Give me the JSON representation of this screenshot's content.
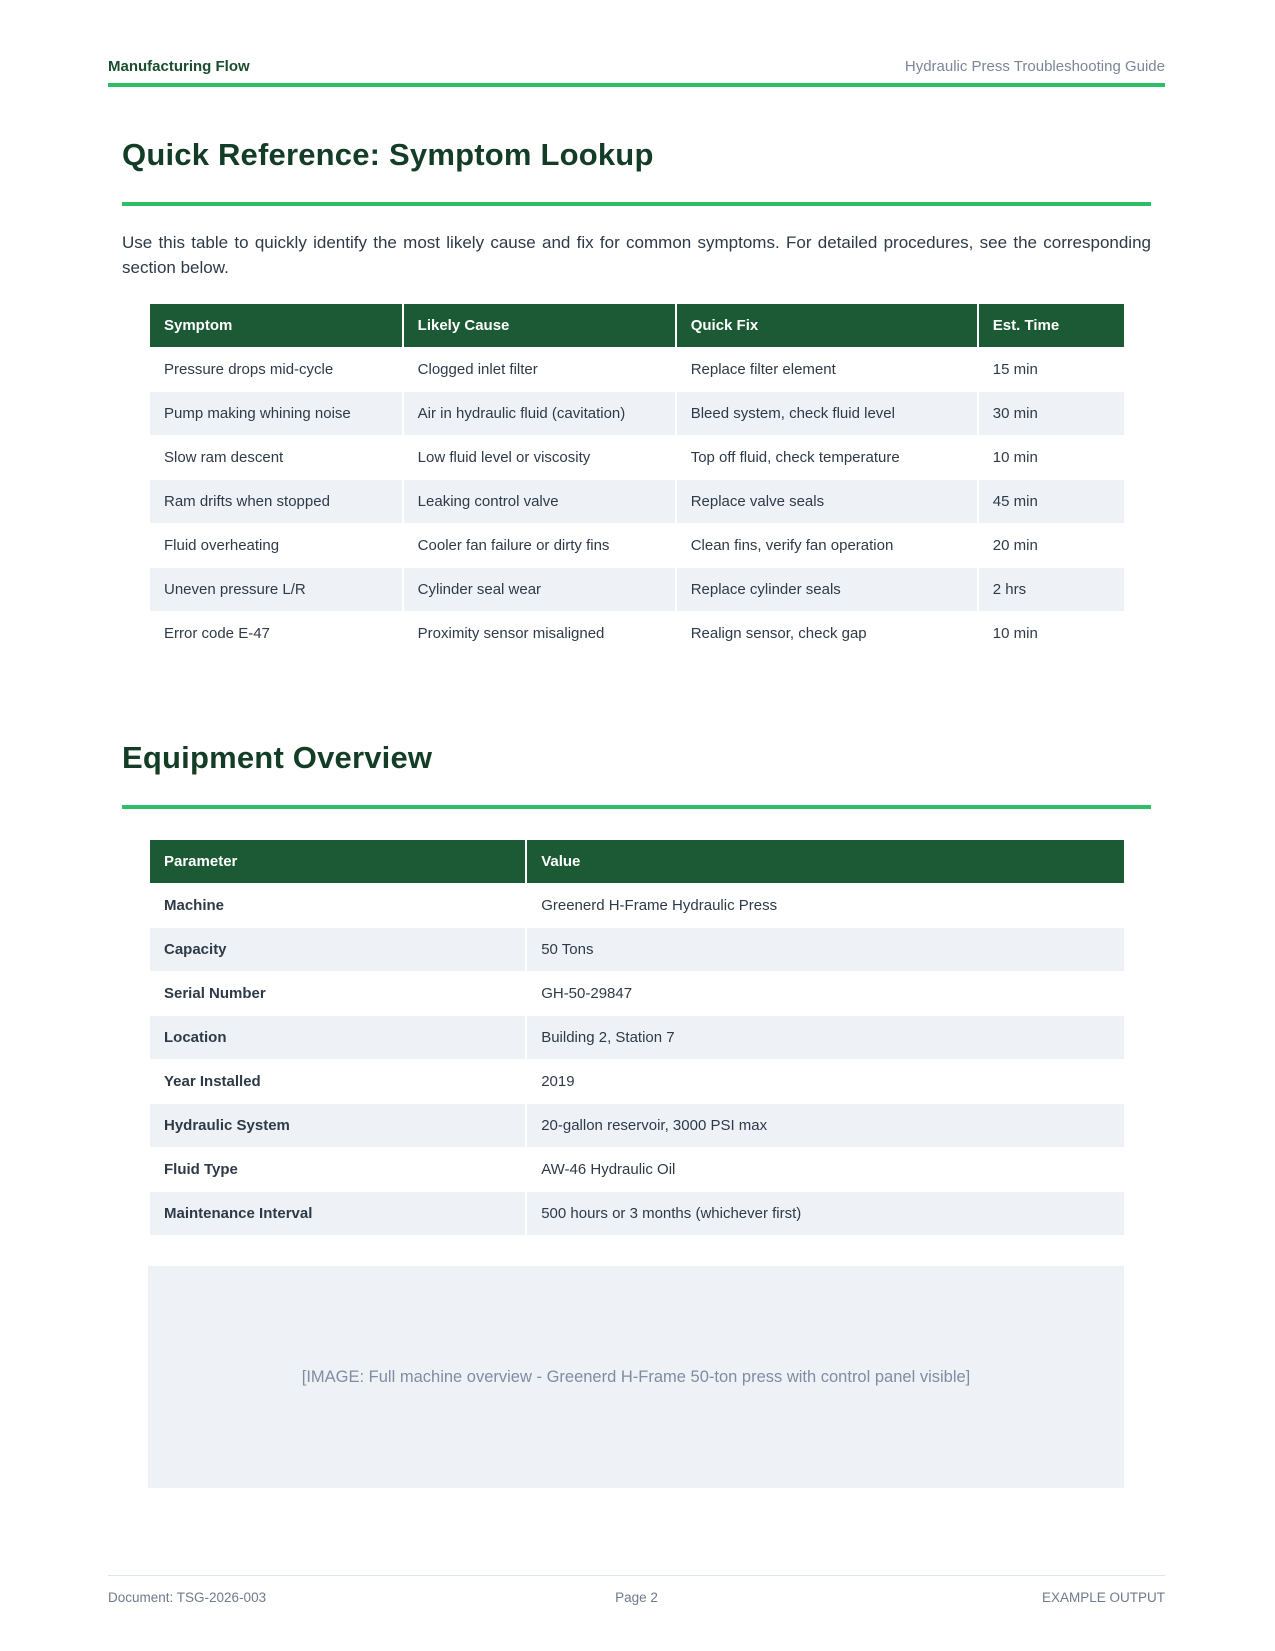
{
  "header": {
    "left": "Manufacturing Flow",
    "right": "Hydraulic Press Troubleshooting Guide"
  },
  "sections": [
    {
      "title": "Quick Reference: Symptom Lookup",
      "intro": "Use this table to quickly identify the most likely cause and fix for common symptoms. For detailed procedures, see the corresponding section below.",
      "table": {
        "columns": [
          "Symptom",
          "Likely Cause",
          "Quick Fix",
          "Est. Time"
        ],
        "rows": [
          [
            "Pressure drops mid-cycle",
            "Clogged inlet filter",
            "Replace filter element",
            "15 min"
          ],
          [
            "Pump making whining noise",
            "Air in hydraulic fluid (cavitation)",
            "Bleed system, check fluid level",
            "30 min"
          ],
          [
            "Slow ram descent",
            "Low fluid level or viscosity",
            "Top off fluid, check temperature",
            "10 min"
          ],
          [
            "Ram drifts when stopped",
            "Leaking control valve",
            "Replace valve seals",
            "45 min"
          ],
          [
            "Fluid overheating",
            "Cooler fan failure or dirty fins",
            "Clean fins, verify fan operation",
            "20 min"
          ],
          [
            "Uneven pressure L/R",
            "Cylinder seal wear",
            "Replace cylinder seals",
            "2 hrs"
          ],
          [
            "Error code E-47",
            "Proximity sensor misaligned",
            "Realign sensor, check gap",
            "10 min"
          ]
        ]
      }
    },
    {
      "title": "Equipment Overview",
      "table": {
        "columns": [
          "Parameter",
          "Value"
        ],
        "rows": [
          [
            "Machine",
            "Greenerd H-Frame Hydraulic Press"
          ],
          [
            "Capacity",
            "50 Tons"
          ],
          [
            "Serial Number",
            "GH-50-29847"
          ],
          [
            "Location",
            "Building 2, Station 7"
          ],
          [
            "Year Installed",
            "2019"
          ],
          [
            "Hydraulic System",
            "20-gallon reservoir, 3000 PSI max"
          ],
          [
            "Fluid Type",
            "AW-46 Hydraulic Oil"
          ],
          [
            "Maintenance Interval",
            "500 hours or 3 months (whichever first)"
          ]
        ]
      },
      "image_placeholder": "[IMAGE: Full machine overview - Greenerd H-Frame 50-ton press with control panel visible]"
    }
  ],
  "footer": {
    "left": "Document: TSG-2026-003",
    "center": "Page 2",
    "right": "EXAMPLE OUTPUT"
  },
  "colors": {
    "accent_green": "#2dbe68",
    "table_header_green": "#1b5a34",
    "heading_dark_green": "#143d27",
    "row_stripe": "#eef2f7",
    "body_text": "#2e3a48",
    "muted_gray": "#7b8799"
  }
}
